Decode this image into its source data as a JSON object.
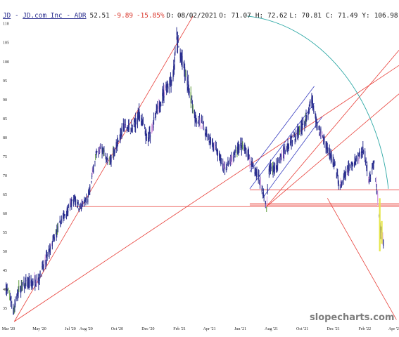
{
  "header": {
    "symbol": "JD",
    "name_prefix": " - ",
    "name": "JD.com Inc - ADR",
    "price": "52.51",
    "change": "-9.89",
    "change_pct": "-15.85%",
    "date_label": "D:",
    "date": "08/02/2021",
    "open_label": "O:",
    "open": "71.07",
    "high_label": "H:",
    "high": "72.62",
    "low_label": "L:",
    "low": "70.81",
    "close_label": "C:",
    "close": "71.49",
    "y_label": "Y:",
    "y_value": "106.98"
  },
  "watermark": "slopecharts.com",
  "colors": {
    "candle": "#2b2f8f",
    "up_accent": "#d69adf",
    "volume_accent": "#e6e64a",
    "trendline": "#e8403a",
    "channel": "#3a3fc0",
    "arc": "#2aa7a4",
    "change_negative": "#d9362b",
    "header_link": "#2b2f8f"
  },
  "chart_data": {
    "type": "candlestick",
    "title": "JD - JD.com Inc - ADR",
    "x_ticks": [
      "Mar '20",
      "May '20",
      "Jul '20",
      "Aug '20",
      "Oct '20",
      "Dec '20",
      "Feb '21",
      "Apr '21",
      "Jun '21",
      "Aug '21",
      "Oct '21",
      "Dec '21",
      "Feb '22",
      "Apr '22"
    ],
    "y_ticks": [
      35,
      40,
      45,
      50,
      55,
      60,
      65,
      70,
      75,
      80,
      85,
      90,
      95,
      100,
      105,
      110
    ],
    "ylim": [
      31.5,
      110.5
    ],
    "xlim": [
      "2020-03-01",
      "2022-04-15"
    ],
    "grid": false,
    "price_path": [
      [
        "2020-03-01",
        40.5
      ],
      [
        "2020-03-10",
        38.0
      ],
      [
        "2020-03-18",
        34.5
      ],
      [
        "2020-03-25",
        39.5
      ],
      [
        "2020-04-05",
        41.0
      ],
      [
        "2020-04-20",
        41.5
      ],
      [
        "2020-05-05",
        42.5
      ],
      [
        "2020-05-20",
        48.0
      ],
      [
        "2020-06-05",
        53.5
      ],
      [
        "2020-06-20",
        58.5
      ],
      [
        "2020-07-01",
        61.0
      ],
      [
        "2020-07-15",
        64.0
      ],
      [
        "2020-07-25",
        61.5
      ],
      [
        "2020-08-10",
        63.5
      ],
      [
        "2020-08-25",
        75.0
      ],
      [
        "2020-09-05",
        77.5
      ],
      [
        "2020-09-20",
        73.0
      ],
      [
        "2020-10-05",
        78.0
      ],
      [
        "2020-10-20",
        83.0
      ],
      [
        "2020-11-05",
        82.0
      ],
      [
        "2020-11-20",
        86.5
      ],
      [
        "2020-12-05",
        79.0
      ],
      [
        "2020-12-25",
        87.0
      ],
      [
        "2021-01-10",
        93.0
      ],
      [
        "2021-01-25",
        96.0
      ],
      [
        "2021-02-01",
        106.0
      ],
      [
        "2021-02-10",
        101.0
      ],
      [
        "2021-02-25",
        93.0
      ],
      [
        "2021-03-10",
        85.0
      ],
      [
        "2021-03-25",
        83.0
      ],
      [
        "2021-04-10",
        79.0
      ],
      [
        "2021-04-25",
        75.5
      ],
      [
        "2021-05-05",
        71.5
      ],
      [
        "2021-05-20",
        74.0
      ],
      [
        "2021-06-05",
        78.0
      ],
      [
        "2021-06-20",
        76.0
      ],
      [
        "2021-07-01",
        72.0
      ],
      [
        "2021-07-15",
        69.0
      ],
      [
        "2021-07-28",
        61.5
      ],
      [
        "2021-08-02",
        71.5
      ],
      [
        "2021-08-15",
        72.0
      ],
      [
        "2021-09-01",
        76.5
      ],
      [
        "2021-09-15",
        79.5
      ],
      [
        "2021-10-01",
        82.0
      ],
      [
        "2021-10-15",
        84.5
      ],
      [
        "2021-10-25",
        90.0
      ],
      [
        "2021-11-05",
        83.0
      ],
      [
        "2021-11-20",
        79.0
      ],
      [
        "2021-12-05",
        74.0
      ],
      [
        "2021-12-20",
        67.0
      ],
      [
        "2022-01-05",
        71.5
      ],
      [
        "2022-01-20",
        74.0
      ],
      [
        "2022-02-05",
        77.0
      ],
      [
        "2022-02-15",
        69.0
      ],
      [
        "2022-02-25",
        73.0
      ],
      [
        "2022-03-05",
        63.0
      ],
      [
        "2022-03-10",
        55.0
      ],
      [
        "2022-03-15",
        52.51
      ]
    ],
    "highlighted_bars": [
      {
        "date": "2022-03-08",
        "low": 50.0,
        "high": 64.0,
        "color": "volume_accent"
      },
      {
        "date": "2022-03-12",
        "low": 52.0,
        "high": 58.0,
        "color": "volume_accent"
      }
    ],
    "trendlines": [
      {
        "from": [
          "2020-03-18",
          31.5
        ],
        "to": [
          "2021-03-05",
          112.0
        ],
        "color": "trendline"
      },
      {
        "from": [
          "2020-03-18",
          31.5
        ],
        "to": [
          "2022-04-15",
          99.0
        ],
        "color": "trendline"
      },
      {
        "from": [
          "2021-07-28",
          61.8
        ],
        "to": [
          "2022-04-15",
          103.0
        ],
        "color": "trendline"
      },
      {
        "from": [
          "2021-07-28",
          61.8
        ],
        "to": [
          "2022-04-15",
          91.5
        ],
        "color": "trendline"
      },
      {
        "from": [
          "2021-11-25",
          64.0
        ],
        "to": [
          "2022-04-10",
          32.0
        ],
        "color": "trendline"
      },
      {
        "from": [
          "2020-07-15",
          61.8
        ],
        "to": [
          "2022-04-15",
          61.8
        ],
        "color": "trendline"
      },
      {
        "from": [
          "2021-06-25",
          66.2
        ],
        "to": [
          "2022-04-15",
          66.2
        ],
        "color": "trendline"
      },
      {
        "from": [
          "2021-06-25",
          62.6
        ],
        "to": [
          "2022-04-15",
          62.6
        ],
        "color": "trendline"
      },
      {
        "from": [
          "2021-06-25",
          62.2
        ],
        "to": [
          "2022-04-15",
          62.2
        ],
        "color": "trendline"
      }
    ],
    "channel_lines": [
      {
        "from": [
          "2021-06-25",
          71.0
        ],
        "to": [
          "2021-10-30",
          93.5
        ]
      },
      {
        "from": [
          "2021-06-25",
          66.5
        ],
        "to": [
          "2021-10-30",
          89.0
        ]
      },
      {
        "from": [
          "2021-07-20",
          64.0
        ],
        "to": [
          "2021-11-15",
          85.5
        ]
      }
    ],
    "arc": {
      "from": [
        "2021-06-20",
        112.0
      ],
      "to": [
        "2022-03-25",
        66.5
      ]
    }
  }
}
